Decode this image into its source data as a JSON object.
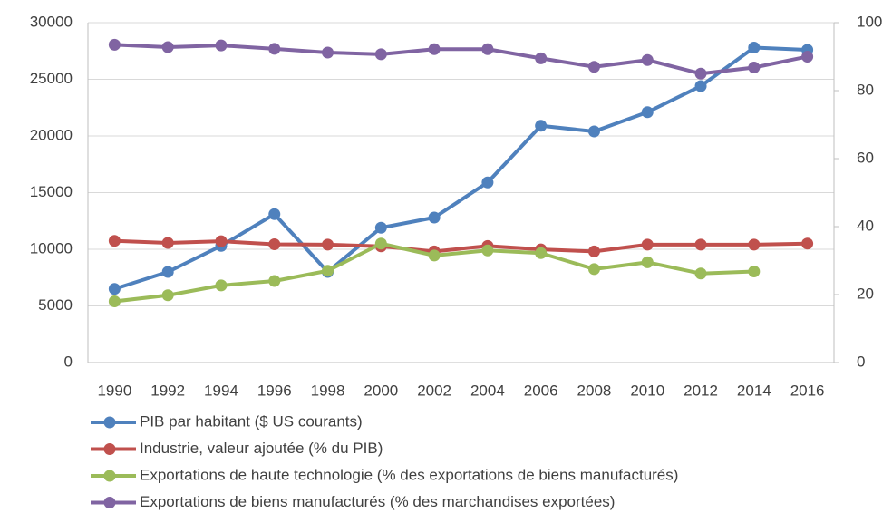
{
  "chart_data": {
    "type": "line",
    "categories": [
      "1990",
      "1992",
      "1994",
      "1996",
      "1998",
      "2000",
      "2002",
      "2004",
      "2006",
      "2008",
      "2010",
      "2012",
      "2014",
      "2016"
    ],
    "series": [
      {
        "name": "PIB par habitant ($ US courants)",
        "color": "#4f81bd",
        "values": [
          6500,
          8000,
          10300,
          13100,
          8000,
          11900,
          12800,
          15900,
          20900,
          20400,
          22100,
          24400,
          27800,
          27600
        ]
      },
      {
        "name": "Industrie, valeur ajoutée (% du PIB)",
        "color": "#c0504d",
        "axis": "y2",
        "values": [
          35.8,
          35.2,
          35.7,
          34.8,
          34.7,
          34.2,
          32.7,
          34.3,
          33.3,
          32.7,
          34.7,
          34.7,
          34.7,
          35
        ]
      },
      {
        "name": "Exportations de haute technologie (% des exportations de biens manufacturés)",
        "color": "#9bbb59",
        "axis": "y2",
        "values": [
          18,
          19.8,
          22.7,
          24,
          27,
          35,
          31.5,
          33,
          32.2,
          27.5,
          29.5,
          26.2,
          26.8,
          null
        ]
      },
      {
        "name": "Exportations de biens manufacturés (% des marchandises exportées)",
        "color": "#8064a2",
        "axis": "y2",
        "values": [
          93.5,
          92.8,
          93.3,
          92.3,
          91.2,
          90.7,
          92.2,
          92.2,
          89.5,
          87,
          89,
          85,
          86.8,
          90
        ]
      }
    ],
    "ylim": [
      0,
      30000
    ],
    "yticks": [
      0,
      5000,
      10000,
      15000,
      20000,
      25000,
      30000
    ],
    "y2lim": [
      0,
      100
    ],
    "y2ticks": [
      0,
      20,
      40,
      60,
      80,
      100
    ],
    "grid": true,
    "legend": "bottom"
  }
}
